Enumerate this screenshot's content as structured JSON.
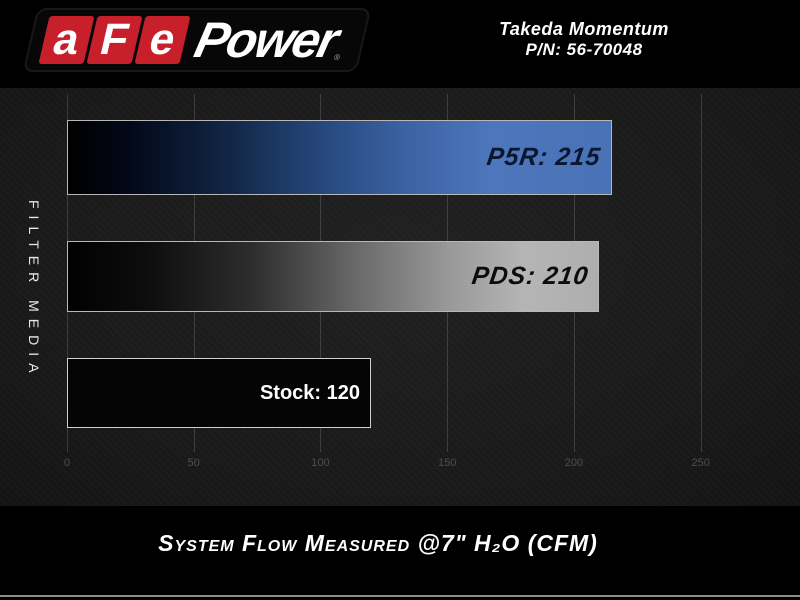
{
  "header": {
    "logo": {
      "letters": [
        "a",
        "F",
        "e"
      ],
      "word": "Power",
      "registered_mark": "®"
    },
    "product_line": "Takeda Momentum",
    "part_number": "P/N: 56-70048"
  },
  "chart_data": {
    "type": "bar",
    "orientation": "horizontal",
    "title": "System Flow Measured @7\" H₂O (CFM)",
    "ylabel": "FILTER MEDIA",
    "categories": [
      "P5R",
      "PDS",
      "Stock"
    ],
    "values": [
      215,
      210,
      120
    ],
    "bars": [
      {
        "category": "P5R",
        "value": 215,
        "label": "P5R: 215",
        "fill": "gradient black → blue",
        "color": "#4a72b8"
      },
      {
        "category": "PDS",
        "value": 210,
        "label": "PDS: 210",
        "fill": "gradient black → silver",
        "color": "#b3b3b3"
      },
      {
        "category": "Stock",
        "value": 120,
        "label": "Stock: 120",
        "fill": "solid black",
        "color": "#050505"
      }
    ],
    "xlim": [
      0,
      250
    ],
    "x_ticks": [
      "0",
      "50",
      "100",
      "150",
      "200",
      "250"
    ],
    "grid": true,
    "legend": false
  },
  "colors": {
    "background": "#000000",
    "plot_background": "#1b1b1b",
    "brand_red": "#c8202b",
    "bar_blue": "#4a72b8",
    "bar_silver": "#b3b3b3",
    "bar_border": "#b8b8b8",
    "tick_text": "#4e4e4e",
    "text": "#ffffff"
  }
}
